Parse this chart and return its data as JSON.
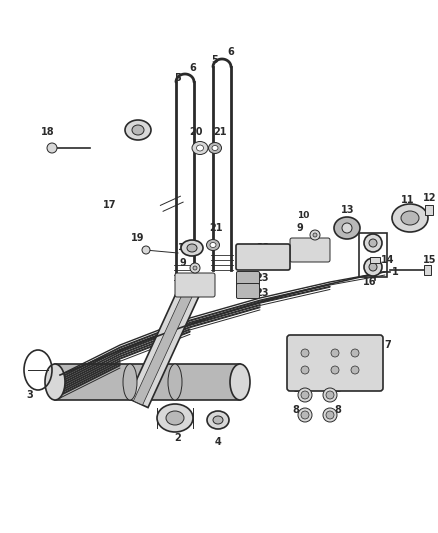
{
  "bg_color": "#ffffff",
  "line_color": "#2a2a2a",
  "label_color": "#1a1a1a",
  "fig_width": 4.38,
  "fig_height": 5.33,
  "dpi": 100,
  "gray_light": "#d8d8d8",
  "gray_mid": "#b8b8b8",
  "gray_dark": "#888888",
  "black": "#1a1a1a"
}
